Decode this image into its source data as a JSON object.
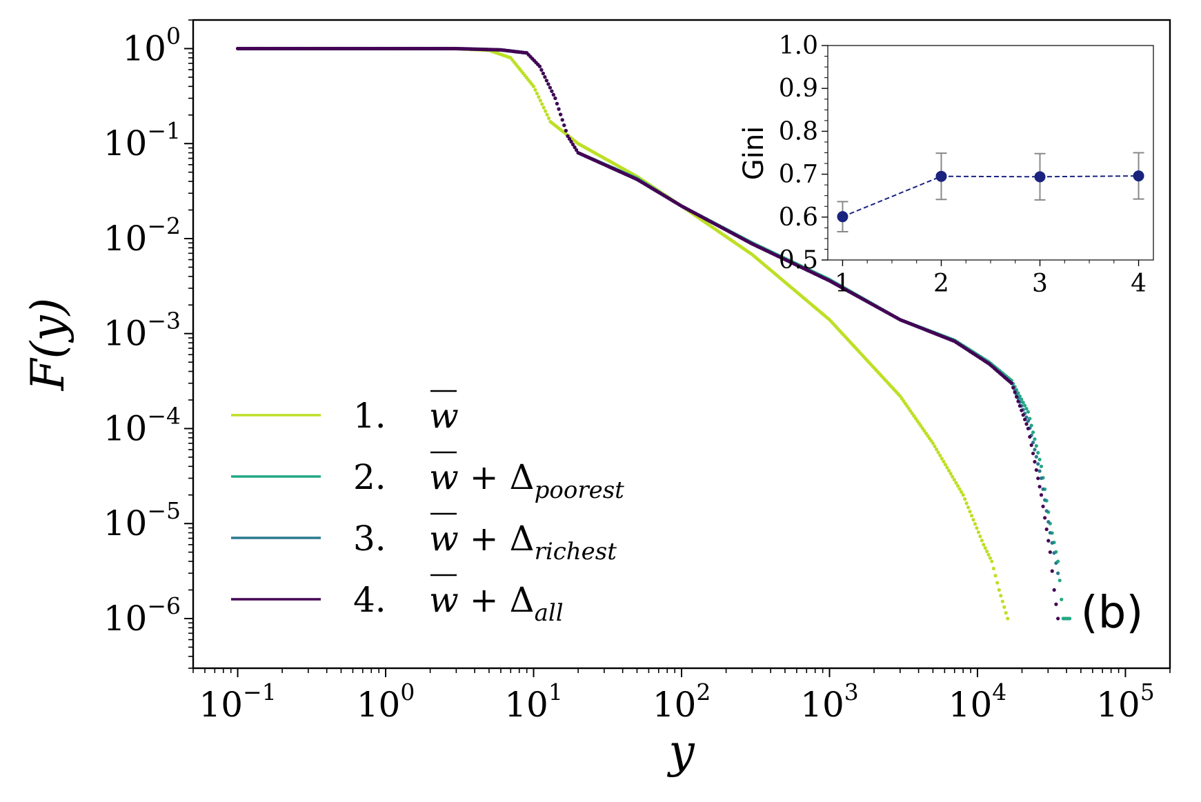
{
  "chart_data": [
    {
      "type": "scatter",
      "title": "",
      "xlabel": "y",
      "ylabel": "F(y)",
      "xscale": "log",
      "yscale": "log",
      "xlim": [
        0.05,
        200000
      ],
      "ylim": [
        3e-07,
        2
      ],
      "x_ticks": [
        {
          "value": 0.1,
          "base": "10",
          "exp": "−1"
        },
        {
          "value": 1,
          "base": "10",
          "exp": "0"
        },
        {
          "value": 10,
          "base": "10",
          "exp": "1"
        },
        {
          "value": 100,
          "base": "10",
          "exp": "2"
        },
        {
          "value": 1000,
          "base": "10",
          "exp": "3"
        },
        {
          "value": 10000,
          "base": "10",
          "exp": "4"
        },
        {
          "value": 100000,
          "base": "10",
          "exp": "5"
        }
      ],
      "y_ticks": [
        {
          "value": 1,
          "base": "10",
          "exp": "0"
        },
        {
          "value": 0.1,
          "base": "10",
          "exp": "−1"
        },
        {
          "value": 0.01,
          "base": "10",
          "exp": "−2"
        },
        {
          "value": 0.001,
          "base": "10",
          "exp": "−3"
        },
        {
          "value": 0.0001,
          "base": "10",
          "exp": "−4"
        },
        {
          "value": 1e-05,
          "base": "10",
          "exp": "−5"
        },
        {
          "value": 1e-06,
          "base": "10",
          "exp": "−6"
        }
      ],
      "panel_label": "(b)",
      "legend_position": "lower-left",
      "series": [
        {
          "name": "1.",
          "label_main": "w",
          "label_sub": "",
          "color": "#bddf26",
          "x": [
            0.1,
            1,
            3,
            5,
            7,
            10,
            13,
            20,
            50,
            100,
            300,
            1000,
            3000,
            5000,
            8000,
            11000,
            12500,
            14000,
            16000
          ],
          "y": [
            1,
            1,
            1,
            0.96,
            0.8,
            0.4,
            0.17,
            0.1,
            0.045,
            0.022,
            0.0068,
            0.0014,
            0.00022,
            7e-05,
            2e-05,
            6e-06,
            4e-06,
            2e-06,
            1e-06
          ]
        },
        {
          "name": "2.",
          "label_main": "w",
          "label_sub": "poorest",
          "color": "#22a884",
          "x": [
            0.1,
            1,
            3,
            6,
            9,
            11,
            14,
            17,
            20,
            50,
            100,
            300,
            1000,
            3000,
            7000,
            12000,
            17000,
            22000,
            27000,
            31000,
            35000,
            38000,
            42000
          ],
          "y": [
            1,
            1,
            1,
            0.97,
            0.9,
            0.65,
            0.3,
            0.12,
            0.08,
            0.043,
            0.022,
            0.009,
            0.0037,
            0.0014,
            0.00085,
            0.0005,
            0.00032,
            0.00015,
            4e-05,
            1e-05,
            4e-06,
            1e-06,
            1e-06
          ]
        },
        {
          "name": "3.",
          "label_main": "w",
          "label_sub": "richest",
          "color": "#2a788e",
          "x": [
            0.1,
            1,
            3,
            6,
            9,
            11,
            14,
            17,
            20,
            50,
            100,
            300,
            1000,
            3000,
            7000,
            12000,
            17000,
            22000,
            27000,
            31000,
            35000
          ],
          "y": [
            1,
            1,
            1,
            0.97,
            0.9,
            0.65,
            0.3,
            0.12,
            0.08,
            0.042,
            0.022,
            0.0088,
            0.0036,
            0.0014,
            0.00083,
            0.00048,
            0.0003,
            0.00012,
            3e-05,
            8e-06,
            3e-06
          ]
        },
        {
          "name": "4.",
          "label_main": "w",
          "label_sub": "all",
          "color": "#440154",
          "x": [
            0.1,
            1,
            3,
            6,
            9,
            11,
            14,
            17,
            20,
            50,
            100,
            300,
            1000,
            3000,
            7000,
            12000,
            17000,
            22000,
            27000,
            31000,
            33000,
            35000
          ],
          "y": [
            1,
            1,
            1,
            0.97,
            0.9,
            0.65,
            0.3,
            0.12,
            0.08,
            0.042,
            0.022,
            0.0088,
            0.0036,
            0.0014,
            0.00083,
            0.00048,
            0.0003,
            0.0001,
            2e-05,
            5e-06,
            2e-06,
            1e-06
          ]
        }
      ]
    },
    {
      "type": "line",
      "title": "",
      "xlabel": "",
      "ylabel": "Gini",
      "xlim": [
        0.85,
        4.15
      ],
      "ylim": [
        0.5,
        1.0
      ],
      "x_ticks": [
        "1",
        "2",
        "3",
        "4"
      ],
      "y_ticks": [
        "0.5",
        "0.6",
        "0.7",
        "0.8",
        "0.9",
        "1.0"
      ],
      "color": "#1a237e",
      "x": [
        1,
        2,
        3,
        4
      ],
      "values": [
        0.601,
        0.695,
        0.694,
        0.696
      ],
      "error": [
        0.035,
        0.054,
        0.054,
        0.054
      ]
    }
  ]
}
